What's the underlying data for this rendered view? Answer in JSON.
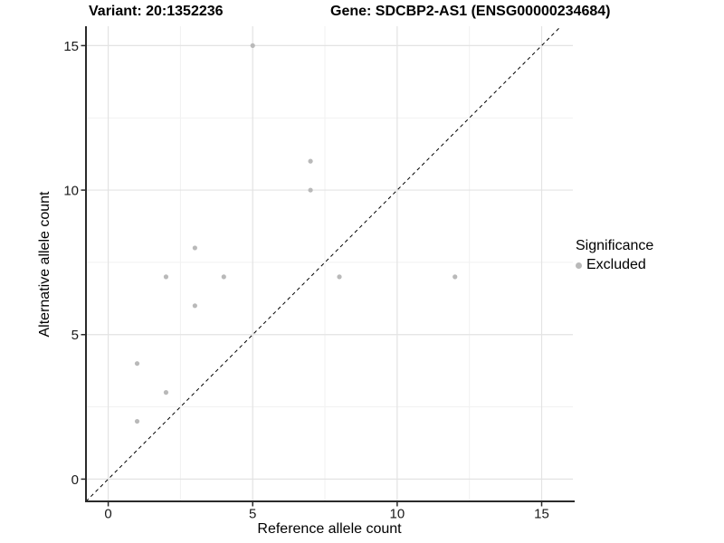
{
  "header": {
    "variant_title": "Variant: 20:1352236",
    "gene_title": "Gene: SDCBP2-AS1 (ENSG00000234684)"
  },
  "chart_data": {
    "type": "scatter",
    "xlabel": "Reference allele count",
    "ylabel": "Alternative allele count",
    "x_ticks": [
      0,
      5,
      10,
      15
    ],
    "y_ticks": [
      0,
      5,
      10,
      15
    ],
    "x_minor_ticks": [
      2.5,
      7.5,
      12.5
    ],
    "y_minor_ticks": [
      2.5,
      7.5,
      12.5
    ],
    "xlim": [
      -0.77,
      16.08
    ],
    "ylim": [
      -0.77,
      15.67
    ],
    "grid": "major+minor",
    "identity_line": {
      "style": "dashed",
      "color": "#000000",
      "equation": "y = x"
    },
    "series": [
      {
        "name": "Excluded",
        "color": "#b9b9b9",
        "points": [
          [
            5,
            15
          ],
          [
            7,
            11
          ],
          [
            7,
            10
          ],
          [
            3,
            8
          ],
          [
            2,
            7
          ],
          [
            4,
            7
          ],
          [
            3,
            6
          ],
          [
            8,
            7
          ],
          [
            12,
            7
          ],
          [
            1,
            4
          ],
          [
            2,
            3
          ],
          [
            1,
            2
          ]
        ]
      }
    ],
    "legend": {
      "title": "Significance",
      "position": "right",
      "items": [
        {
          "label": "Excluded",
          "color": "#b9b9b9"
        }
      ]
    },
    "colors": {
      "grid_major": "#e3e3e3",
      "grid_minor": "#f1f1f1",
      "axis_line": "#2a2a2a",
      "tick_text": "#1a1a1a"
    }
  }
}
